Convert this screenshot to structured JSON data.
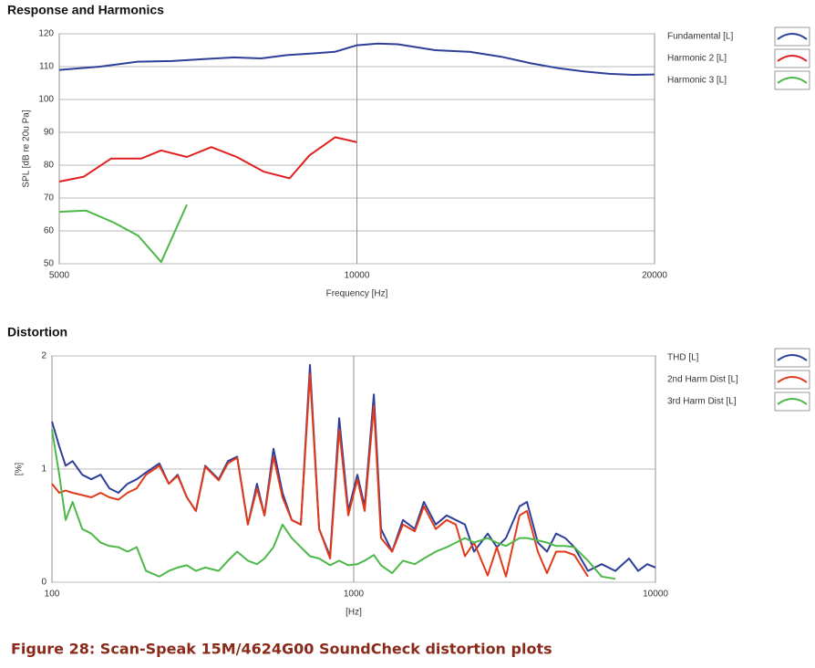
{
  "chart_data": [
    {
      "type": "line",
      "title": "Response and Harmonics",
      "xlabel": "Frequency [Hz]",
      "ylabel": "SPL [dB re 20u Pa]",
      "xscale": "log",
      "xlim": [
        5000,
        20000
      ],
      "xticks": [
        5000,
        10000,
        20000
      ],
      "ylim": [
        50,
        120
      ],
      "yticks": [
        50,
        60,
        70,
        80,
        90,
        100,
        110,
        120
      ],
      "grid": true,
      "legend": "right",
      "series": [
        {
          "name": "Fundamental [L]",
          "color": "#2e3f9a",
          "x": [
            5000,
            5500,
            6000,
            6500,
            7000,
            7500,
            8000,
            8500,
            9000,
            9500,
            10000,
            10500,
            11000,
            12000,
            13000,
            14000,
            15000,
            16000,
            17000,
            18000,
            19000,
            20000
          ],
          "values": [
            109,
            110,
            111.5,
            111.7,
            112.3,
            112.8,
            112.5,
            113.5,
            114,
            114.5,
            116.5,
            117,
            116.8,
            115,
            114.5,
            113,
            111,
            109.5,
            108.5,
            107.8,
            107.5,
            107.6
          ]
        },
        {
          "name": "Harmonic 2 [L]",
          "color": "#e02020",
          "x": [
            5000,
            5295,
            5640,
            6050,
            6340,
            6730,
            7125,
            7560,
            8055,
            8550,
            8955,
            9505,
            10000
          ],
          "values": [
            75,
            76.5,
            82,
            82,
            84.5,
            82.5,
            85.5,
            82.5,
            78,
            76,
            83,
            88.5,
            87
          ]
        },
        {
          "name": "Harmonic 3 [L]",
          "color": "#4cb848",
          "x": [
            5000,
            5320,
            5680,
            6010,
            6340,
            6730
          ],
          "values": [
            65.8,
            66.2,
            62.5,
            58.5,
            50.5,
            68
          ]
        }
      ]
    },
    {
      "type": "line",
      "title": "Distortion",
      "xlabel": "[Hz]",
      "ylabel": "[%]",
      "xscale": "log",
      "xlim": [
        100,
        10000
      ],
      "xticks": [
        100,
        1000,
        10000
      ],
      "ylim": [
        0,
        2
      ],
      "yticks": [
        0,
        1,
        2
      ],
      "grid": true,
      "legend": "right",
      "x": [
        100,
        105.7,
        111,
        117,
        126,
        135,
        145,
        155,
        166,
        178,
        191,
        205,
        227,
        244,
        261,
        280,
        300,
        322,
        357,
        383,
        411,
        446,
        478,
        506,
        542,
        581,
        623,
        668,
        716,
        768,
        835,
        895,
        959,
        1028,
        1087,
        1166,
        1232,
        1340,
        1456,
        1594,
        1709,
        1870,
        2033,
        2180,
        2337,
        2505,
        2780,
        2981,
        3195,
        3545,
        3750,
        4076,
        4370,
        4685,
        5022,
        5384,
        5975,
        6634,
        7364,
        8174,
        8763,
        9393,
        10000
      ],
      "series": [
        {
          "name": "THD [L]",
          "color": "#2e3f9a",
          "values": [
            1.42,
            1.2,
            1.03,
            1.07,
            0.95,
            0.91,
            0.95,
            0.83,
            0.79,
            0.87,
            0.91,
            0.97,
            1.05,
            0.87,
            0.95,
            0.75,
            0.63,
            1.03,
            0.91,
            1.07,
            1.11,
            0.51,
            0.87,
            0.59,
            1.18,
            0.79,
            0.55,
            0.51,
            1.92,
            0.47,
            0.23,
            1.45,
            0.63,
            0.95,
            0.67,
            1.66,
            0.47,
            0.27,
            0.55,
            0.47,
            0.71,
            0.51,
            0.59,
            0.55,
            0.51,
            0.27,
            0.43,
            0.31,
            0.39,
            0.67,
            0.71,
            0.35,
            0.27,
            0.43,
            0.39,
            0.31,
            0.1,
            0.16,
            0.1,
            0.21,
            0.1,
            0.16,
            0.13
          ]
        },
        {
          "name": "2nd Harm Dist [L]",
          "color": "#e03a1a",
          "values": [
            0.87,
            0.79,
            0.81,
            0.79,
            0.77,
            0.75,
            0.79,
            0.75,
            0.73,
            0.79,
            0.83,
            0.95,
            1.03,
            0.87,
            0.94,
            0.75,
            0.63,
            1.02,
            0.9,
            1.05,
            1.1,
            0.51,
            0.83,
            0.59,
            1.11,
            0.75,
            0.55,
            0.51,
            1.84,
            0.47,
            0.21,
            1.35,
            0.59,
            0.91,
            0.63,
            1.56,
            0.39,
            0.27,
            0.51,
            0.45,
            0.67,
            0.47,
            0.55,
            0.51,
            0.23,
            0.35,
            0.06,
            0.31,
            0.05,
            0.59,
            0.63,
            0.27,
            0.08,
            0.27,
            0.27,
            0.24,
            0.05,
            null,
            null,
            null,
            null,
            null,
            null
          ]
        },
        {
          "name": "3rd Harm Dist [L]",
          "color": "#4cb848",
          "values": [
            1.35,
            0.95,
            0.55,
            0.71,
            0.47,
            0.43,
            0.35,
            0.32,
            0.31,
            0.27,
            0.31,
            0.1,
            0.05,
            0.1,
            0.13,
            0.15,
            0.1,
            0.13,
            0.1,
            0.19,
            0.27,
            0.19,
            0.16,
            0.21,
            0.31,
            0.51,
            0.39,
            0.31,
            0.23,
            0.21,
            0.15,
            0.19,
            0.15,
            0.16,
            0.19,
            0.24,
            0.15,
            0.08,
            0.19,
            0.16,
            0.21,
            0.27,
            0.31,
            0.35,
            0.39,
            0.35,
            0.39,
            0.35,
            0.32,
            0.39,
            0.39,
            0.37,
            0.35,
            0.32,
            0.32,
            0.31,
            0.19,
            0.05,
            0.03,
            null,
            null,
            null,
            null
          ]
        }
      ]
    }
  ],
  "caption": "Figure 28: Scan-Speak 15M/4624G00 SoundCheck distortion plots"
}
